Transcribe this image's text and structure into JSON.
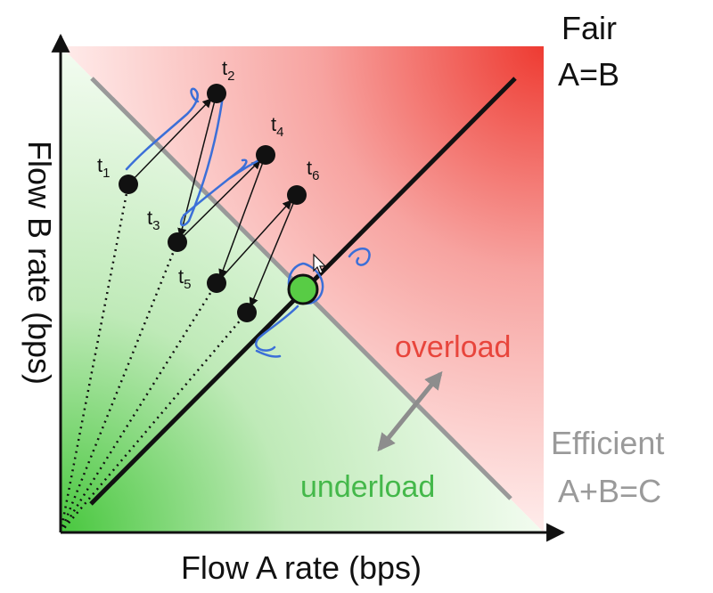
{
  "axes": {
    "x_label": "Flow A rate (bps)",
    "y_label": "Flow B rate (bps)"
  },
  "fairness_line": {
    "title": "Fair",
    "equation": "A=B"
  },
  "efficiency_line": {
    "title": "Efficient",
    "equation": "A+B=C"
  },
  "regions": {
    "overload": "overload",
    "underload": "underload"
  },
  "colors": {
    "overload": "#e8453c",
    "underload": "#44b84a",
    "efficiency_line": "#9a9a9a",
    "annotation": "#3b6fd8",
    "equilibrium_point": "#55cc44"
  },
  "points": [
    {
      "label": "t",
      "sub": "1"
    },
    {
      "label": "t",
      "sub": "2"
    },
    {
      "label": "t",
      "sub": "3"
    },
    {
      "label": "t",
      "sub": "4"
    },
    {
      "label": "t",
      "sub": "5"
    },
    {
      "label": "t",
      "sub": "6"
    },
    {
      "label": "",
      "sub": ""
    }
  ]
}
